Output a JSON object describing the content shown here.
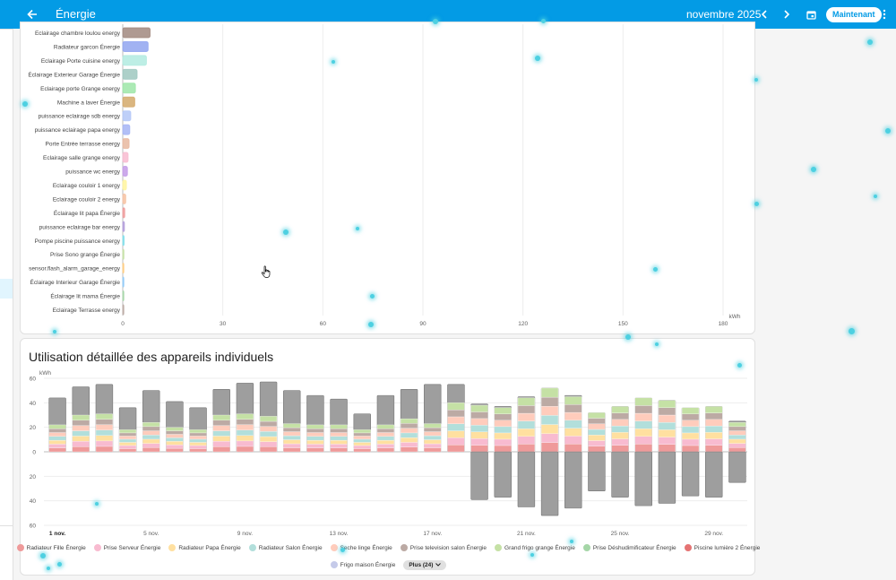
{
  "header": {
    "title": "Énergie",
    "period": "novembre 2025",
    "now_label": "Maintenant"
  },
  "chart1": {
    "type": "bar",
    "orientation": "horizontal",
    "unit": "kWh",
    "xlim": [
      0,
      180
    ],
    "xticks": [
      "0",
      "30",
      "60",
      "90",
      "120",
      "150",
      "180"
    ],
    "categories": [
      "Eclairage chambre loulou energy",
      "Radiateur garcon Énergie",
      "Eclairage Porte cuisine energy",
      "Éclairage Exterieur Garage Énergie",
      "Eclairage porte Grange energy",
      "Machine a laver Énergie",
      "puissance eclairage sdb energy",
      "puissance eclairage papa energy",
      "Porte Entrée terrasse energy",
      "Eclairage salle grange energy",
      "puissance wc energy",
      "Eclairage couloir 1 energy",
      "Eclairage couloir 2 energy",
      "Éclairage lit papa Énergie",
      "puissance eclairage bar energy",
      "Pompe piscine puissance energy",
      "Prise Sono grange Énergie",
      "sensor.flash_alarm_garage_energy",
      "Éclairage Interieur Garage Énergie",
      "Éclairage lit mama Énergie",
      "Eclairage Terrasse energy"
    ],
    "values": [
      8.2,
      7.6,
      7.1,
      4.3,
      3.8,
      3.6,
      2.4,
      2.1,
      1.9,
      1.6,
      1.4,
      1.1,
      0.9,
      0.6,
      0.5,
      0.4,
      0.35,
      0.3,
      0.3,
      0.25,
      0.2
    ],
    "colors": [
      "#a1887f",
      "#90a4f0",
      "#b2ebe0",
      "#9fc8c0",
      "#9ee6a8",
      "#d4a96a",
      "#b3c7f7",
      "#a5b4f5",
      "#e8b8a0",
      "#f8bbd0",
      "#c39be8",
      "#fff59d",
      "#f6c2a2",
      "#ef9a9a",
      "#b39ddb",
      "#80deea",
      "#c5e1a5",
      "#ffcc80",
      "#90caf9",
      "#a5d6a7",
      "#bcaaa4"
    ]
  },
  "chart2": {
    "title": "Utilisation détaillée des appareils individuels",
    "unit": "kWh",
    "ylim": [
      -60,
      60
    ],
    "yticks": [
      "60",
      "40",
      "20",
      "0",
      "20",
      "40",
      "60"
    ],
    "x": [
      "1 nov.",
      "2 nov.",
      "3 nov.",
      "4 nov.",
      "5 nov.",
      "6 nov.",
      "7 nov.",
      "8 nov.",
      "9 nov.",
      "10 nov.",
      "11 nov.",
      "12 nov.",
      "13 nov.",
      "14 nov.",
      "15 nov.",
      "16 nov.",
      "17 nov.",
      "18 nov.",
      "19 nov.",
      "20 nov.",
      "21 nov.",
      "22 nov.",
      "23 nov.",
      "24 nov.",
      "25 nov.",
      "26 nov.",
      "27 nov.",
      "28 nov.",
      "29 nov.",
      "30 nov."
    ],
    "xtick_labels": [
      "1 nov.",
      "5 nov.",
      "9 nov.",
      "13 nov.",
      "17 nov.",
      "21 nov.",
      "25 nov.",
      "29 nov."
    ],
    "totals_positive": [
      44,
      53,
      55,
      36,
      50,
      41,
      36,
      51,
      56,
      57,
      50,
      46,
      43,
      31,
      46,
      51,
      55,
      55,
      39,
      37,
      45,
      52,
      46,
      32,
      37,
      44,
      42,
      36,
      37,
      25
    ],
    "stacked_top": [
      22,
      30,
      31,
      18,
      24,
      20,
      18,
      30,
      31,
      29,
      23,
      22,
      22,
      18,
      22,
      27,
      23,
      40,
      38,
      36,
      44,
      52,
      45,
      32,
      37,
      44,
      42,
      36,
      37,
      24
    ],
    "negative": [
      0,
      0,
      0,
      0,
      0,
      0,
      0,
      0,
      0,
      0,
      0,
      0,
      0,
      0,
      0,
      0,
      0,
      0,
      -39,
      -37,
      -45,
      -52,
      -46,
      -32,
      -37,
      -44,
      -42,
      -36,
      -37,
      -25
    ],
    "legend": [
      {
        "name": "Radiateur Fille Énergie",
        "color": "#ef9a9a"
      },
      {
        "name": "Prise Serveur Énergie",
        "color": "#f8bbd0"
      },
      {
        "name": "Radiateur Papa Énergie",
        "color": "#ffe0a0"
      },
      {
        "name": "Radiateur Salon Énergie",
        "color": "#b2dfdb"
      },
      {
        "name": "Seche linge Énergie",
        "color": "#ffccbc"
      },
      {
        "name": "Prise television salon Énergie",
        "color": "#bcaaa4"
      },
      {
        "name": "Grand frigo grange Énergie",
        "color": "#c5e1a5"
      },
      {
        "name": "Prise Déshudimificateur Énergie",
        "color": "#a5d6a7"
      },
      {
        "name": "Piscine lumière 2 Énergie",
        "color": "#e57373"
      },
      {
        "name": "Frigo maison Énergie",
        "color": "#c5cae9"
      }
    ],
    "more_label": "Plus (24)"
  },
  "colors": {
    "accent": "#039be5",
    "bar_total": "#9e9e9e"
  }
}
